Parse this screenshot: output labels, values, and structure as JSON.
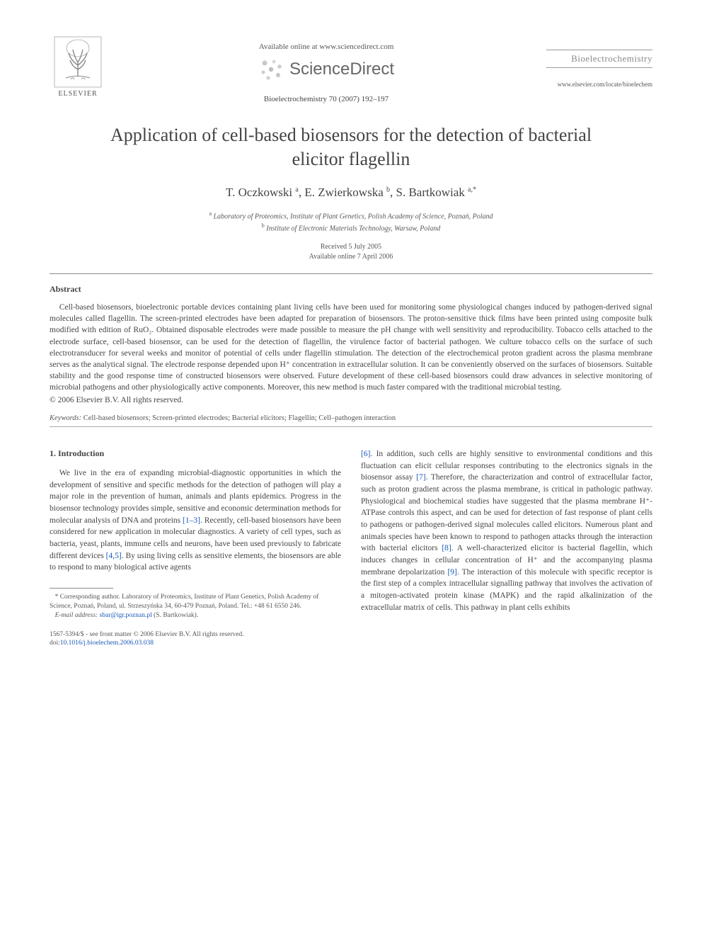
{
  "header": {
    "publisher_name": "ELSEVIER",
    "available_online": "Available online at www.sciencedirect.com",
    "sd_name": "ScienceDirect",
    "citation": "Bioelectrochemistry 70 (2007) 192–197",
    "journal_name": "Bioelectrochemistry",
    "journal_url": "www.elsevier.com/locate/bioelechem"
  },
  "article": {
    "title": "Application of cell-based biosensors for the detection of bacterial elicitor flagellin",
    "authors_html": "T. Oczkowski <sup>a</sup>, E. Zwierkowska <sup>b</sup>, S. Bartkowiak <sup>a,*</sup>",
    "affiliation_a": "Laboratory of Proteomics, Institute of Plant Genetics, Polish Academy of Science, Poznań, Poland",
    "affiliation_b": "Institute of Electronic Materials Technology, Warsaw, Poland",
    "received": "Received 5 July 2005",
    "online": "Available online 7 April 2006"
  },
  "abstract": {
    "label": "Abstract",
    "text": "Cell-based biosensors, bioelectronic portable devices containing plant living cells have been used for monitoring some physiological changes induced by pathogen-derived signal molecules called flagellin. The screen-printed electrodes have been adapted for preparation of biosensors. The proton-sensitive thick films have been printed using composite bulk modified with edition of RuO₂. Obtained disposable electrodes were made possible to measure the pH change with well sensitivity and reproducibility. Tobacco cells attached to the electrode surface, cell-based biosensor, can be used for the detection of flagellin, the virulence factor of bacterial pathogen. We culture tobacco cells on the surface of such electrotransducer for several weeks and monitor of potential of cells under flagellin stimulation. The detection of the electrochemical proton gradient across the plasma membrane serves as the analytical signal. The electrode response depended upon H⁺ concentration in extracellular solution. It can be conveniently observed on the surfaces of biosensors. Suitable stability and the good response time of constructed biosensors were observed. Future development of these cell-based biosensors could draw advances in selective monitoring of microbial pathogens and other physiologically active components. Moreover, this new method is much faster compared with the traditional microbial testing.",
    "copyright": "© 2006 Elsevier B.V. All rights reserved."
  },
  "keywords": {
    "label": "Keywords:",
    "text": "Cell-based biosensors; Screen-printed electrodes; Bacterial elicitors; Flagellin; Cell–pathogen interaction"
  },
  "section1": {
    "heading": "1. Introduction",
    "left_para_parts": [
      "We live in the era of expanding microbial-diagnostic opportunities in which the development of sensitive and specific methods for the detection of pathogen will play a major role in the prevention of human, animals and plants epidemics. Progress in the biosensor technology provides simple, sensitive and economic determination methods for molecular analysis of DNA and proteins ",
      ". Recently, cell-based biosensors have been considered for new application in molecular diagnostics. A variety of cell types, such as bacteria, yeast, plants, immune cells and neurons, have been used previously to fabricate different devices ",
      ". By using living cells as sensitive elements, the biosensors are able to respond to many biological active agents"
    ],
    "ref1": "[1–3]",
    "ref2": "[4,5]",
    "right_para_parts": [
      ". In addition, such cells are highly sensitive to environmental conditions and this fluctuation can elicit cellular responses contributing to the electronics signals in the biosensor assay ",
      ". Therefore, the characterization and control of extracellular factor, such as proton gradient across the plasma membrane, is critical in pathologic pathway. Physiological and biochemical studies have suggested that the plasma membrane H⁺-ATPase controls this aspect, and can be used for detection of fast response of plant cells to pathogens or pathogen-derived signal molecules called elicitors. Numerous plant and animals species have been known to respond to pathogen attacks through the interaction with bacterial elicitors ",
      ". A well-characterized elicitor is bacterial flagellin, which induces changes in cellular concentration of H⁺ and the accompanying plasma membrane depolarization ",
      ". The interaction of this molecule with specific receptor is the first step of a complex intracellular signalling pathway that involves the activation of a mitogen-activated protein kinase (MAPK) and the rapid alkalinization of the extracellular matrix of cells. This pathway in plant cells exhibits"
    ],
    "ref3": "[6]",
    "ref4": "[7]",
    "ref5": "[8]",
    "ref6": "[9]"
  },
  "footnote": {
    "corr": "* Corresponding author. Laboratory of Proteomics, Institute of Plant Genetics, Polish Academy of Science, Poznań, Poland, ul. Strzeszyńska 34, 60-479 Poznań, Poland. Tel.: +48 61 6550 246.",
    "email_label": "E-mail address:",
    "email": "sbar@igr.poznan.pl",
    "email_paren": "(S. Bartkowiak)."
  },
  "footer": {
    "issn": "1567-5394/$ - see front matter © 2006 Elsevier B.V. All rights reserved.",
    "doi_label": "doi:",
    "doi": "10.1016/j.bioelechem.2006.03.038"
  },
  "colors": {
    "link": "#1858b8",
    "text": "#444444",
    "rule": "#888888"
  }
}
